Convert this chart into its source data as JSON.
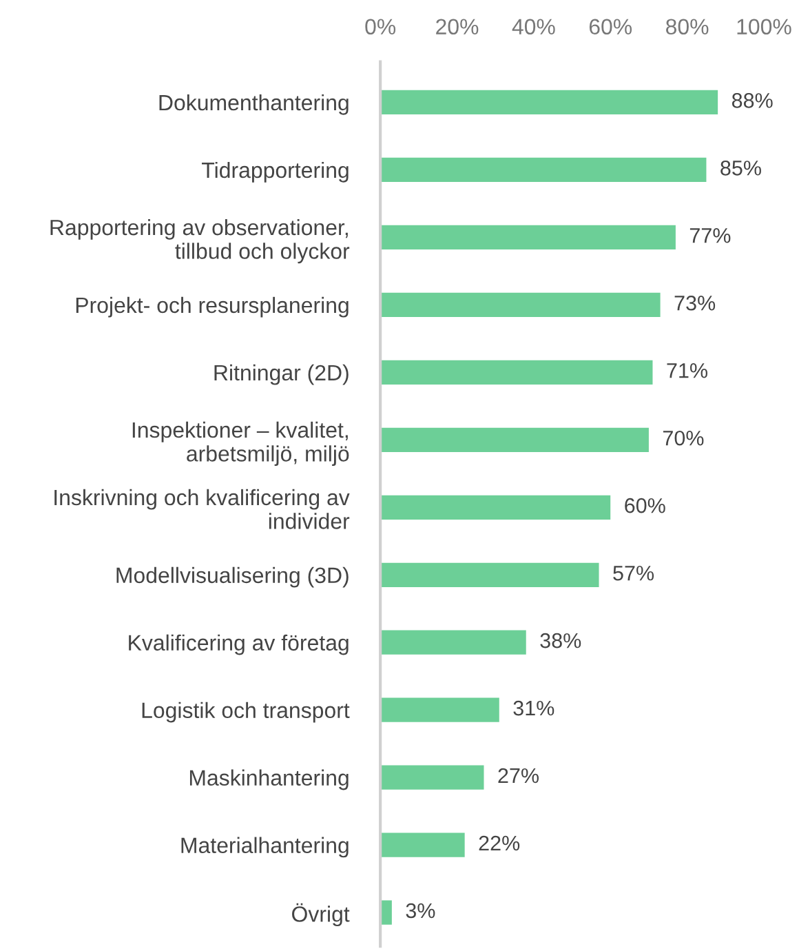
{
  "chart_data": {
    "type": "bar",
    "orientation": "horizontal",
    "categories": [
      "Dokumenthantering",
      "Tidrapportering",
      "Rapportering av observationer,\ntillbud och olyckor",
      "Projekt- och resursplanering",
      "Ritningar (2D)",
      "Inspektioner – kvalitet,\narbetsmiljö, miljö",
      "Inskrivning och kvalificering av\nindivider",
      "Modellvisualisering (3D)",
      "Kvalificering av företag",
      "Logistik och transport",
      "Maskinhantering",
      "Materialhantering",
      "Övrigt"
    ],
    "values": [
      88,
      85,
      77,
      73,
      71,
      70,
      60,
      57,
      38,
      31,
      27,
      22,
      3
    ],
    "value_labels": [
      "88%",
      "85%",
      "77%",
      "73%",
      "71%",
      "70%",
      "60%",
      "57%",
      "38%",
      "31%",
      "27%",
      "22%",
      "3%"
    ],
    "color": "#6ccf97",
    "xlim": [
      0,
      100
    ],
    "xticks": [
      {
        "value": 0,
        "label": "0%"
      },
      {
        "value": 20,
        "label": "20%"
      },
      {
        "value": 40,
        "label": "40%"
      },
      {
        "value": 60,
        "label": "60%"
      },
      {
        "value": 80,
        "label": "80%"
      },
      {
        "value": 100,
        "label": "100%"
      }
    ],
    "grid": false
  }
}
